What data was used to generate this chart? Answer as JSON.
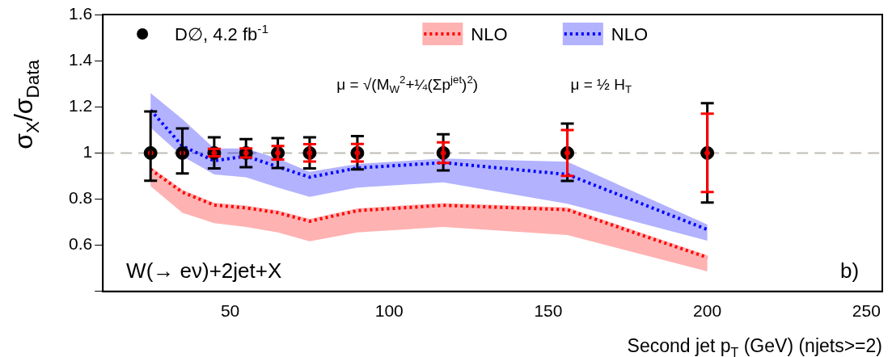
{
  "chart_data": {
    "type": "scatter",
    "ylabel": "σ$_{X}$/σ$_{Data}$",
    "xlabel": "Second jet p$_{T}$ (GeV) (njets>=2)",
    "x": [
      25,
      35,
      45,
      55,
      65,
      75,
      90,
      117,
      156,
      200
    ],
    "xlim": [
      10,
      255
    ],
    "xticks": [
      50,
      100,
      150,
      200,
      250
    ],
    "ylim": [
      0.4,
      1.6
    ],
    "yticks": [
      {
        "value": 0.4,
        "label": null
      },
      0.6,
      0.8,
      1,
      1.2,
      1.4,
      1.6
    ],
    "grid": false,
    "legend": "top",
    "marker": "circle",
    "series": [
      {
        "name": "D∅, 4.2 fb$^{-1}$",
        "color": "#000000",
        "values": [
          1,
          1,
          1,
          1,
          1,
          1,
          1,
          1,
          1,
          1
        ],
        "errors": [
          [
            0.88,
            1.18
          ],
          [
            0.911,
            1.106
          ],
          [
            0.933,
            1.068
          ],
          [
            0.938,
            1.06
          ],
          [
            0.935,
            1.064
          ],
          [
            0.933,
            1.068
          ],
          [
            0.929,
            1.073
          ],
          [
            0.924,
            1.081
          ],
          [
            0.879,
            1.127
          ],
          [
            0.785,
            1.216
          ]
        ]
      },
      {
        "color": "#ff0000",
        "values": [
          1,
          1,
          1,
          1,
          1,
          1,
          1,
          1,
          1,
          1
        ],
        "errors": [
          null,
          null,
          [
            0.986,
            1.018
          ],
          [
            0.98,
            1.02
          ],
          [
            0.972,
            1.03
          ],
          [
            0.963,
            1.038
          ],
          [
            0.963,
            1.039
          ],
          [
            0.957,
            1.046
          ],
          [
            0.901,
            1.099
          ],
          [
            0.831,
            1.17
          ]
        ]
      },
      {
        "name": "NLO",
        "type": "line",
        "color": "#ff0000",
        "line_style": "dotted",
        "marker": "none",
        "values": [
          0.929,
          0.83,
          0.774,
          0.762,
          0.741,
          0.704,
          0.75,
          0.773,
          0.754,
          0.547
        ],
        "lower": [
          0.856,
          0.741,
          0.696,
          0.679,
          0.656,
          0.617,
          0.656,
          0.679,
          0.644,
          0.487
        ],
        "upper": [
          0.94,
          0.84,
          0.784,
          0.772,
          0.751,
          0.714,
          0.76,
          0.783,
          0.764,
          0.557
        ]
      },
      {
        "name": "NLO",
        "type": "line",
        "color": "#0000ff",
        "line_style": "dotted",
        "marker": "none",
        "values": [
          1.186,
          1.03,
          0.966,
          0.986,
          0.94,
          0.895,
          0.935,
          0.958,
          0.907,
          0.668
        ],
        "lower": [
          1.11,
          0.986,
          0.907,
          0.895,
          0.85,
          0.81,
          0.85,
          0.873,
          0.78,
          0.62
        ],
        "upper": [
          1.26,
          1.147,
          1.02,
          1.02,
          0.976,
          0.918,
          0.952,
          0.976,
          0.962,
          0.69
        ]
      }
    ],
    "ref_lines": [
      {
        "axis": "y",
        "value": 1,
        "color": "#c0bcb6",
        "line_style": "dashed"
      }
    ],
    "annotations": [
      "μ = √(M$_{W}$$^{2}$+¼(Σp$^{jet}$)$^{2}$)",
      "μ = ½ H$_{T}$",
      "W(→ eν)+2jet+X",
      "b)"
    ]
  }
}
